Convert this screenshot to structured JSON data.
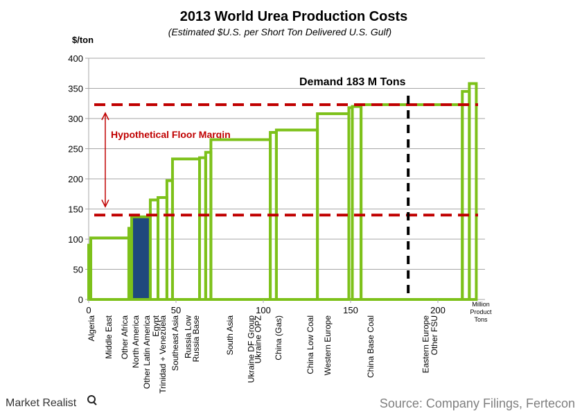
{
  "chart_data": {
    "type": "step-bar",
    "title": "2013 World Urea Production Costs",
    "subtitle": "(Estimated $U.S. per Short Ton Delivered U.S. Gulf)",
    "ylabel": "$/ton",
    "xlabel": "Million Product Tons",
    "xlim": [
      0,
      225
    ],
    "ylim": [
      0,
      400
    ],
    "xticks": [
      0,
      50,
      100,
      150,
      200
    ],
    "yticks": [
      0,
      50,
      100,
      150,
      200,
      250,
      300,
      350,
      400
    ],
    "grid": true,
    "segments": [
      {
        "label": "Algeria",
        "x0": 0,
        "x1": 1.2,
        "y": 90,
        "label_x": 1.6
      },
      {
        "label": "Middle East",
        "x0": 1.2,
        "x1": 23,
        "y": 102,
        "label_x": 11.5
      },
      {
        "label": "Other Africa",
        "x0": 23,
        "x1": 24.6,
        "y": 118,
        "label_x": 20.6
      },
      {
        "label": "North America",
        "x0": 24.6,
        "x1": 35.3,
        "y": 137,
        "label_x": 27,
        "highlight": true
      },
      {
        "label": "Other Latin America",
        "x0": 35.3,
        "x1": 39.7,
        "y": 165,
        "label_x": 33.3
      },
      {
        "label": "Egypt",
        "x0": 39.7,
        "x1": 44.8,
        "y": 169,
        "label_x": 38.5
      },
      {
        "label": "Trinidad + Venezuela",
        "x0": 44.8,
        "x1": 48,
        "y": 197,
        "label_x": 42.5
      },
      {
        "label": "Southeast Asia",
        "x0": 48,
        "x1": 63.5,
        "y": 233,
        "label_x": 49.6
      },
      {
        "label": "Russia Low",
        "x0": 63.5,
        "x1": 67,
        "y": 235,
        "label_x": 57
      },
      {
        "label": "Russia Base",
        "x0": 67,
        "x1": 70,
        "y": 244,
        "label_x": 61.5
      },
      {
        "label": "South Asia",
        "x0": 70,
        "x1": 104,
        "y": 265,
        "label_x": 81
      },
      {
        "label": "Ukraine DF Group",
        "x0": 104,
        "x1": 107.5,
        "y": 277,
        "label_x": 93
      },
      {
        "label": "Ukraine OPZ",
        "x0": 107.5,
        "x1": 131,
        "y": 281,
        "label_x": 97
      },
      {
        "label": "China (Gas)",
        "x0": 131,
        "x1": 149,
        "y": 308,
        "label_x": 108.7
      },
      {
        "label": "China Low Coal",
        "x0": 149,
        "x1": 151,
        "y": 318,
        "label_x": 127
      },
      {
        "label": "Western Europe",
        "x0": 151,
        "x1": 156,
        "y": 320,
        "label_x": 137
      },
      {
        "label": "China Base Coal",
        "x0": 156,
        "x1": 214,
        "y": 323,
        "label_x": 161.5
      },
      {
        "label": "Eastern Europe",
        "x0": 214,
        "x1": 218,
        "y": 345,
        "label_x": 193
      },
      {
        "label": "Other FSU",
        "x0": 218,
        "x1": 222,
        "y": 358,
        "label_x": 198
      }
    ],
    "reference_lines": {
      "upper_floor": 323,
      "lower_floor": 140,
      "demand_x": 183
    },
    "annotations": {
      "demand": "Demand 183 M Tons",
      "margin": "Hypothetical Floor Margin",
      "margin_arrow_x": 9.5
    },
    "colors": {
      "step": "#7dc11a",
      "highlight": "#1f497d",
      "floor": "#c00000",
      "demand": "#000000",
      "grid": "#a6a6a6"
    }
  },
  "footer": {
    "logo": "Market Realist",
    "source": "Source: Company Filings, Fertecon"
  }
}
